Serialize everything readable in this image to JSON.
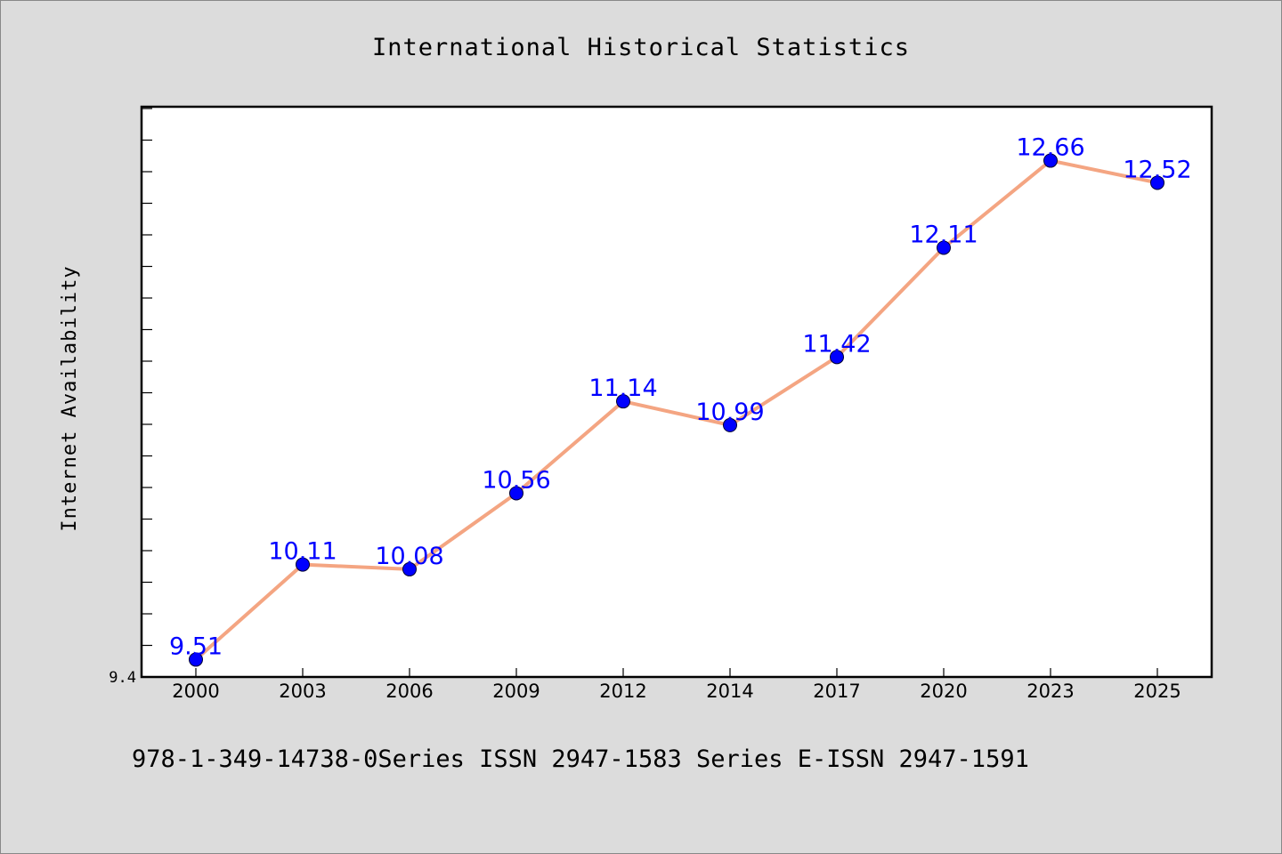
{
  "chart_data": {
    "type": "line",
    "title": "International Historical Statistics",
    "xlabel": "",
    "ylabel": "Internet Availability",
    "categories": [
      "2000",
      "2003",
      "2006",
      "2009",
      "2012",
      "2014",
      "2017",
      "2020",
      "2023",
      "2025"
    ],
    "series": [
      {
        "name": "",
        "values": [
          9.51,
          10.11,
          10.08,
          10.56,
          11.14,
          10.99,
          11.42,
          12.11,
          12.66,
          12.52
        ]
      }
    ],
    "data_labels": [
      "9.51",
      "10.11",
      "10.08",
      "10.56",
      "11.14",
      "10.99",
      "11.42",
      "12.11",
      "12.66",
      "12.52"
    ],
    "ylim": [
      9.4,
      13.0
    ],
    "y_tick_labels": [
      "9.4"
    ],
    "grid": false,
    "legend": "none",
    "footer": "978-1-349-14738-0Series ISSN 2947-1583 Series E-ISSN 2947-1591",
    "colors": {
      "background": "#dcdcdc",
      "plot_background": "#ffffff",
      "line": "#f4a582",
      "marker": "#0000ff",
      "data_label": "#0000ff",
      "text": "#000000"
    }
  }
}
